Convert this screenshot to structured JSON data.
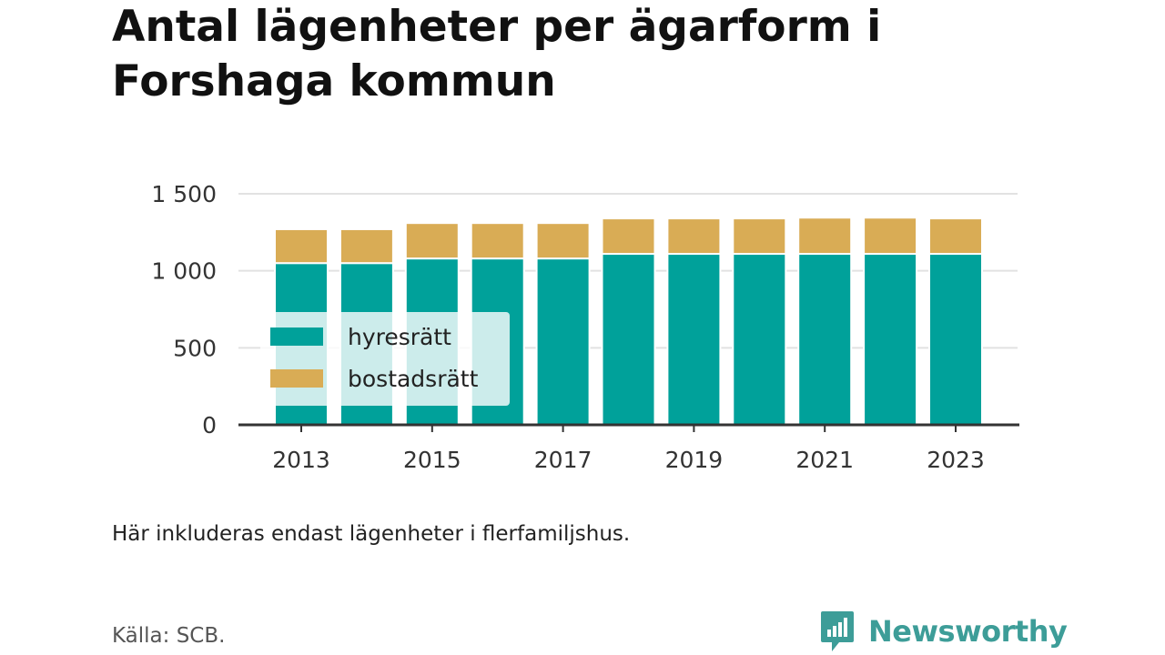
{
  "title": "Antal lägenheter per ägarform i Forshaga kommun",
  "note": "Här inkluderas endast lägenheter i flerfamiljshus.",
  "source": "Källa: SCB.",
  "brand": {
    "name": "Newsworthy",
    "color": "#3d9d98"
  },
  "chart_data": {
    "type": "bar",
    "stacked": true,
    "categories": [
      "2013",
      "2014",
      "2015",
      "2016",
      "2017",
      "2018",
      "2019",
      "2020",
      "2021",
      "2022",
      "2023"
    ],
    "x_tick_labels": [
      "2013",
      "2015",
      "2017",
      "2019",
      "2021",
      "2023"
    ],
    "y_ticks": [
      0,
      500,
      1000,
      1500
    ],
    "y_tick_labels": [
      "0",
      "500",
      "1 000",
      "1 500"
    ],
    "ylim": [
      0,
      1500
    ],
    "grid": true,
    "legend_position": "left",
    "series": [
      {
        "name": "hyresrätt",
        "color": "#00a19a",
        "values": [
          1050,
          1050,
          1080,
          1080,
          1080,
          1110,
          1110,
          1110,
          1110,
          1110,
          1110
        ]
      },
      {
        "name": "bostadsrätt",
        "color": "#d9ac55",
        "values": [
          220,
          220,
          230,
          230,
          230,
          230,
          230,
          230,
          235,
          235,
          230
        ]
      }
    ]
  }
}
